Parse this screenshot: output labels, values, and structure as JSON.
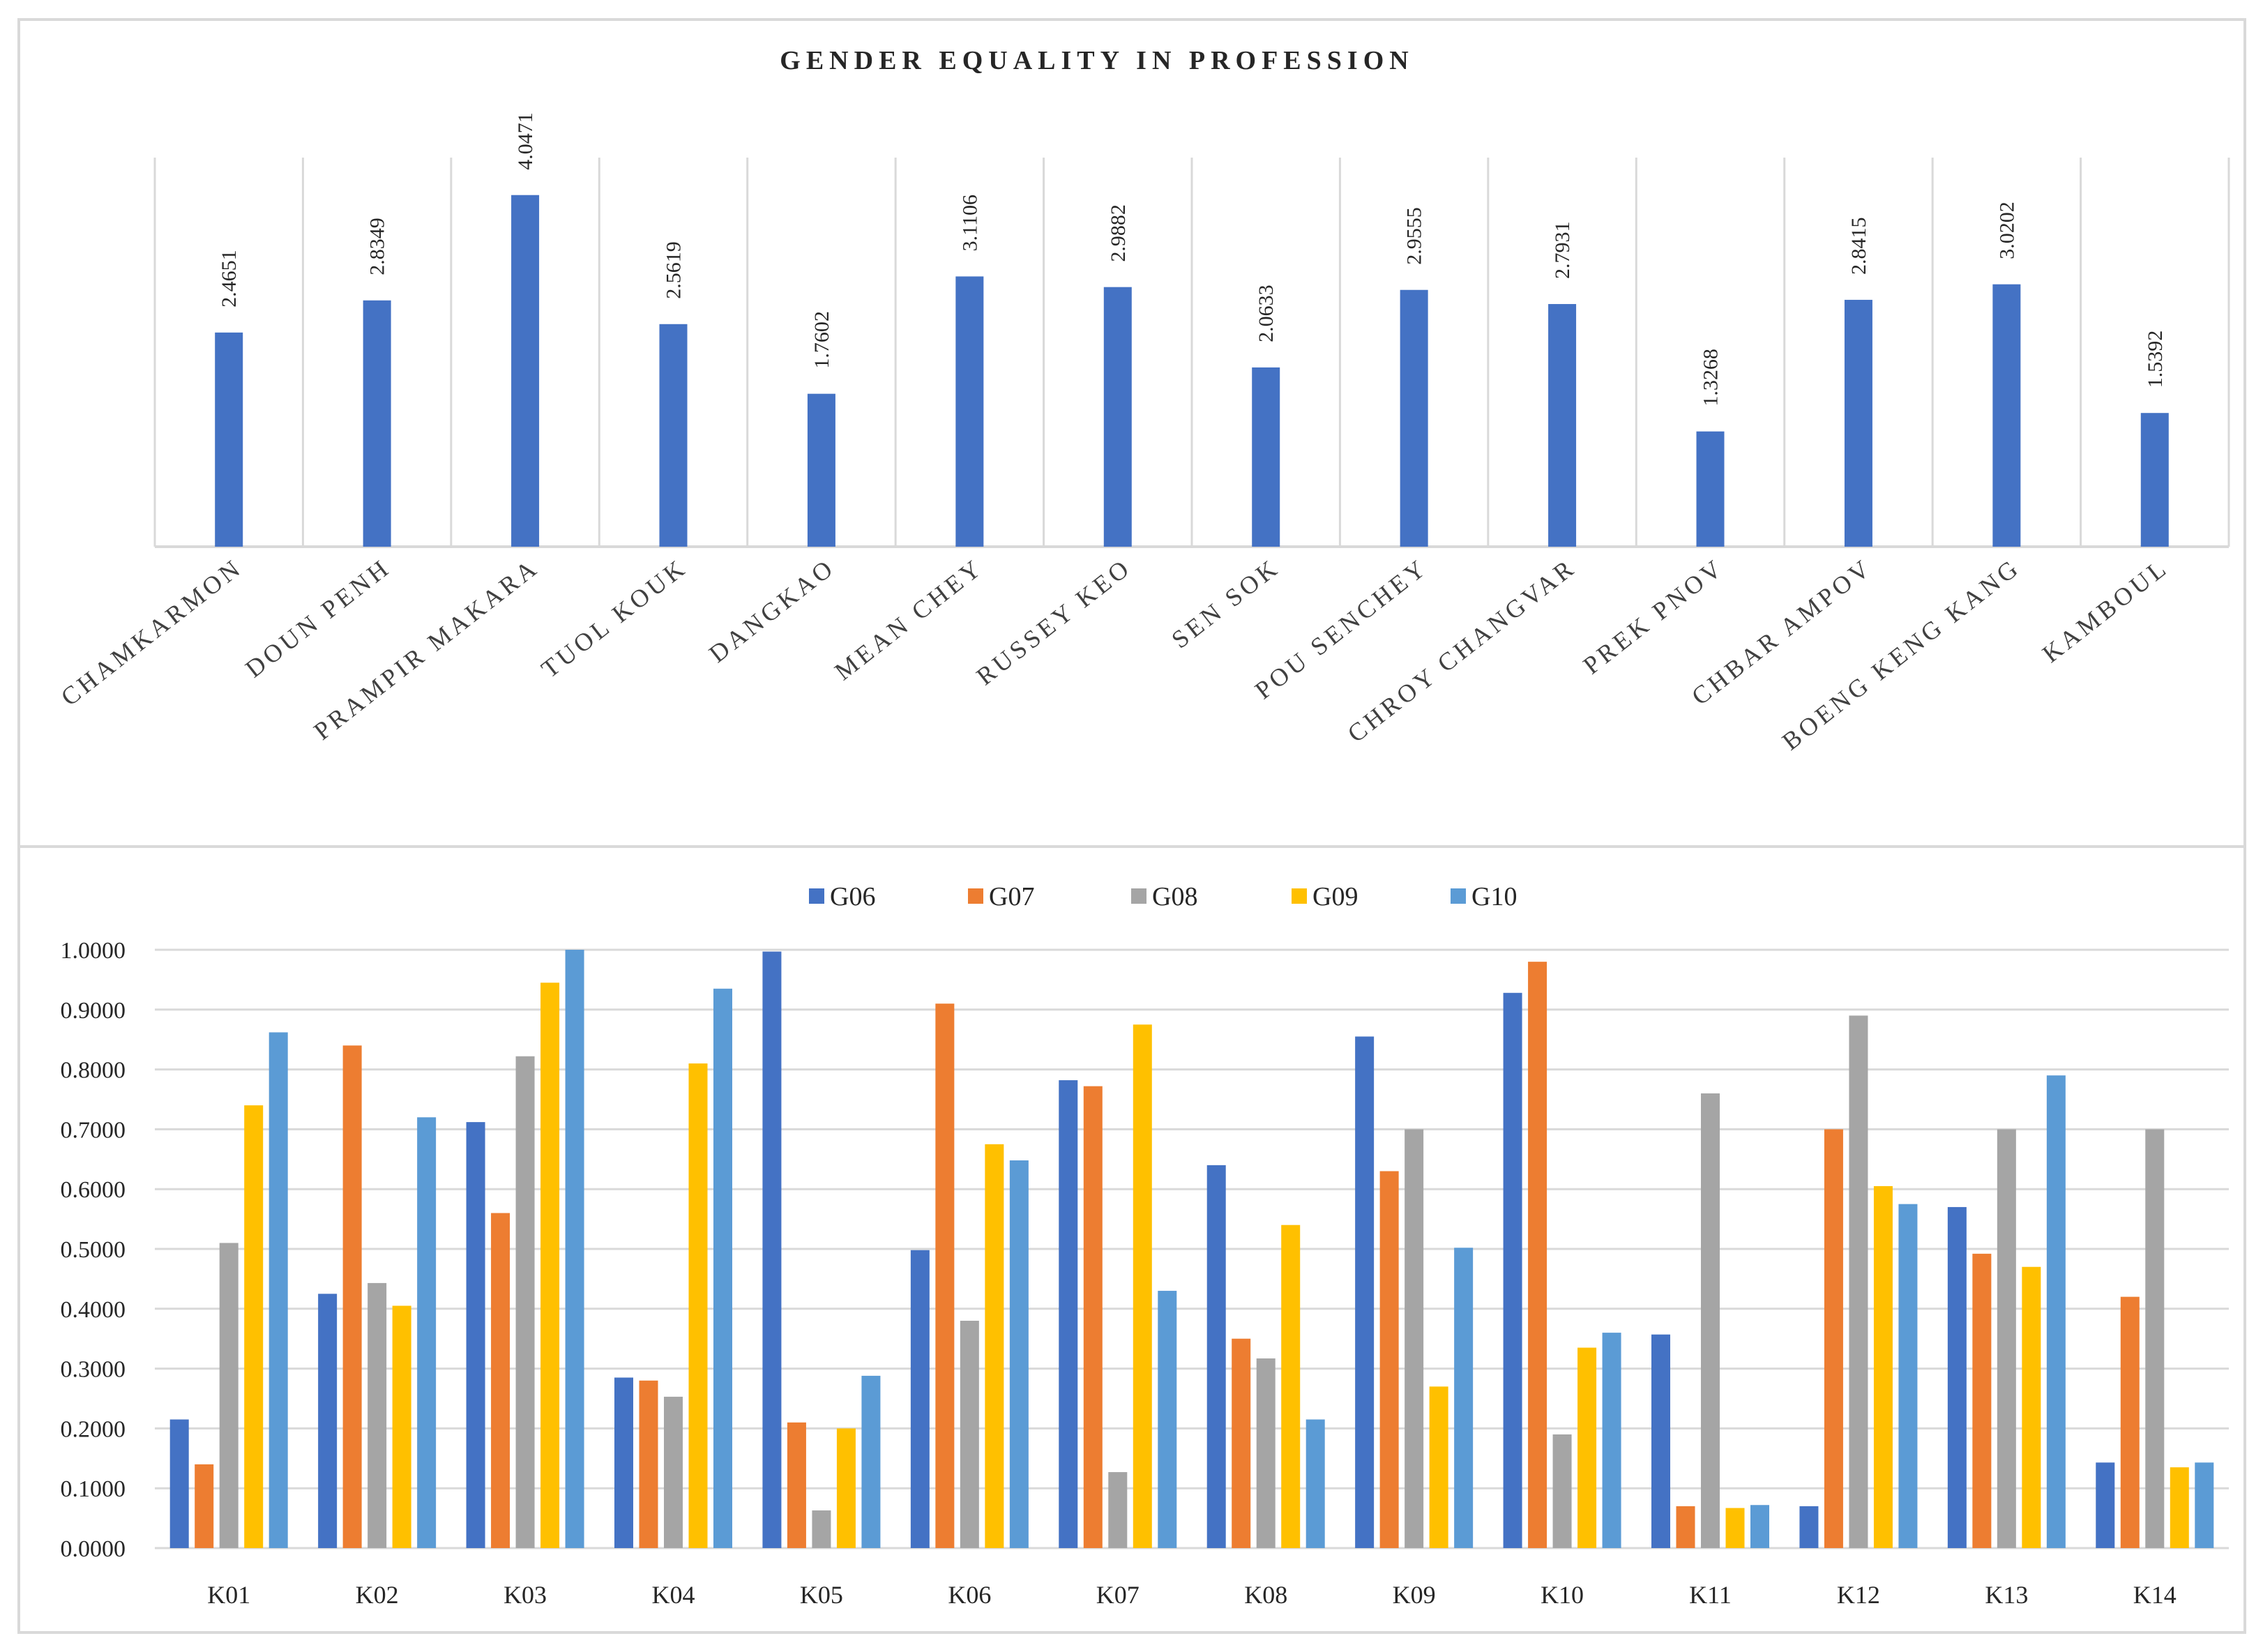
{
  "chart_data": [
    {
      "type": "bar",
      "title": "GENDER EQUALITY IN PROFESSION",
      "categories": [
        "CHAMKARMON",
        "DOUN PENH",
        "PRAMPIR MAKARA",
        "TUOL KOUK",
        "DANGKAO",
        "MEAN CHEY",
        "RUSSEY KEO",
        "SEN SOK",
        "POU SENCHEY",
        "CHROY CHANGVAR",
        "PREK PNOV",
        "CHBAR AMPOV",
        "BOENG KENG KANG",
        "KAMBOUL"
      ],
      "values": [
        2.4651,
        2.8349,
        4.0471,
        2.5619,
        1.7602,
        3.1106,
        2.9882,
        2.0633,
        2.9555,
        2.7931,
        1.3268,
        2.8415,
        3.0202,
        1.5392
      ],
      "value_labels": [
        "2.4651",
        "2.8349",
        "4.0471",
        "2.5619",
        "1.7602",
        "3.1106",
        "2.9882",
        "2.0633",
        "2.9555",
        "2.7931",
        "1.3268",
        "2.8415",
        "3.0202",
        "1.5392"
      ],
      "color": "#4472C4",
      "ylim": [
        0,
        5
      ],
      "grid": false,
      "xlabel": "",
      "ylabel": ""
    },
    {
      "type": "bar",
      "title": "",
      "categories": [
        "K01",
        "K02",
        "K03",
        "K04",
        "K05",
        "K06",
        "K07",
        "K08",
        "K09",
        "K10",
        "K11",
        "K12",
        "K13",
        "K14"
      ],
      "series": [
        {
          "name": "G06",
          "color": "#4472C4",
          "values": [
            0.215,
            0.425,
            0.712,
            0.285,
            0.997,
            0.498,
            0.782,
            0.64,
            0.855,
            0.928,
            0.357,
            0.07,
            0.57,
            0.143
          ]
        },
        {
          "name": "G07",
          "color": "#ED7D31",
          "values": [
            0.14,
            0.84,
            0.56,
            0.28,
            0.21,
            0.91,
            0.772,
            0.35,
            0.63,
            0.98,
            0.07,
            0.7,
            0.492,
            0.42
          ]
        },
        {
          "name": "G08",
          "color": "#A5A5A5",
          "values": [
            0.51,
            0.443,
            0.822,
            0.253,
            0.063,
            0.38,
            0.127,
            0.317,
            0.7,
            0.19,
            0.76,
            0.89,
            0.7,
            0.7
          ]
        },
        {
          "name": "G09",
          "color": "#FFC000",
          "values": [
            0.74,
            0.405,
            0.945,
            0.81,
            0.2,
            0.675,
            0.875,
            0.54,
            0.27,
            0.335,
            0.067,
            0.605,
            0.47,
            0.135
          ]
        },
        {
          "name": "G10",
          "color": "#5B9BD5",
          "values": [
            0.862,
            0.72,
            1.0,
            0.935,
            0.288,
            0.648,
            0.43,
            0.215,
            0.502,
            0.36,
            0.072,
            0.575,
            0.79,
            0.143
          ]
        }
      ],
      "yticks": [
        "0.0000",
        "0.1000",
        "0.2000",
        "0.3000",
        "0.4000",
        "0.5000",
        "0.6000",
        "0.7000",
        "0.8000",
        "0.9000",
        "1.0000"
      ],
      "ylim": [
        0,
        1.0
      ],
      "grid": true,
      "legend": "top-center",
      "xlabel": "",
      "ylabel": ""
    }
  ]
}
